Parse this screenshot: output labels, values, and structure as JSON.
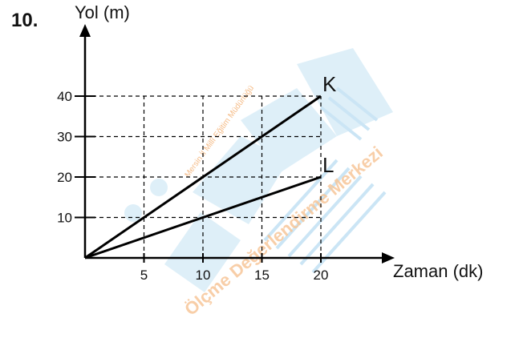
{
  "question_number": "10.",
  "watermark": {
    "line1": "Mersin İl Millî Eğitim Müdürlüğü",
    "line2": "Ölçme Değerlendirme Merkezi",
    "colors": {
      "blue": "#3aa6dc",
      "orange": "#f2a25a"
    }
  },
  "chart_data": {
    "type": "line",
    "ylabel": "Yol (m)",
    "xlabel": "Zaman (dk)",
    "x_ticks": [
      5,
      10,
      15,
      20
    ],
    "y_ticks": [
      10,
      20,
      30,
      40
    ],
    "xlim": [
      0,
      20
    ],
    "ylim": [
      0,
      40
    ],
    "grid": "dashed at tick values",
    "series": [
      {
        "name": "K",
        "x": [
          0,
          20
        ],
        "y": [
          0,
          40
        ]
      },
      {
        "name": "L",
        "x": [
          0,
          20
        ],
        "y": [
          0,
          20
        ]
      }
    ]
  }
}
